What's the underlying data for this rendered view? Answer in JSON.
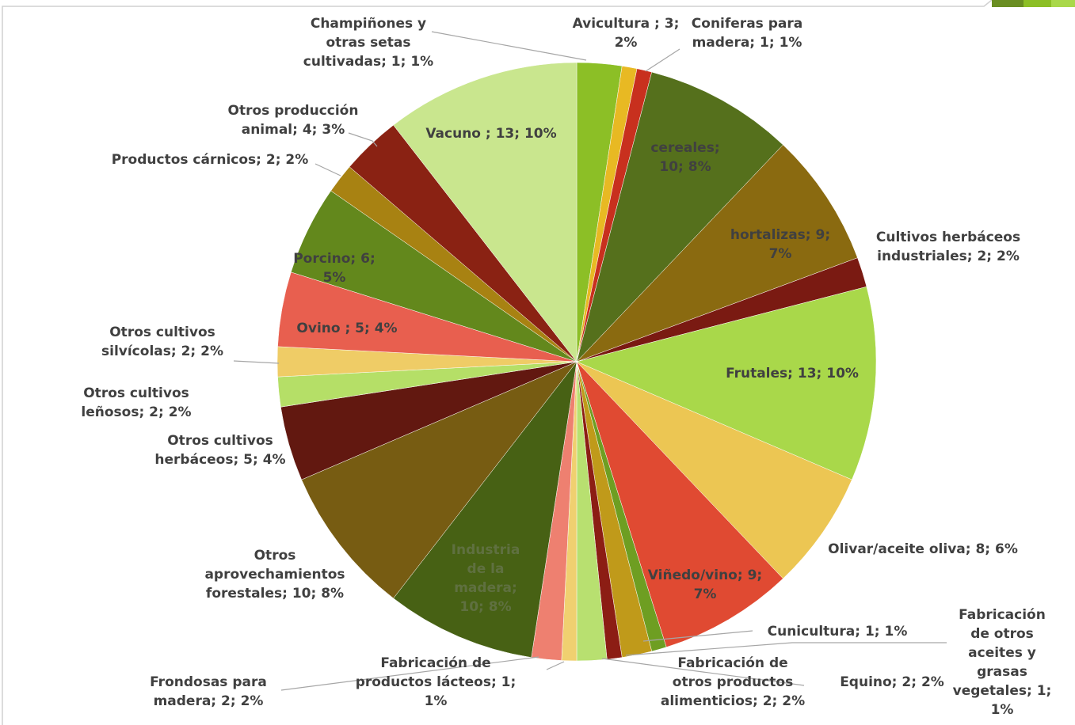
{
  "chart_data": {
    "type": "pie",
    "values": [
      3,
      1,
      1,
      10,
      9,
      2,
      13,
      8,
      9,
      1,
      2,
      1,
      2,
      1,
      2,
      10,
      10,
      5,
      2,
      2,
      5,
      6,
      2,
      4,
      13
    ],
    "value_labels": [
      "Avicultura ; 3; 2%",
      "Champiñones y otras setas cultivadas; 1; 1%",
      "Coniferas para madera; 1; 1%",
      "cereales; 10; 8%",
      "hortalizas; 9; 7%",
      "Cultivos herbáceos industriales; 2; 2%",
      "Frutales; 13; 10%",
      "Olivar/aceite oliva; 8; 6%",
      "Viñedo/vino; 9; 7%",
      "Cunicultura; 1; 1%",
      "Equino; 2; 2%",
      "Fabricación de otros aceites y grasas vegetales; 1; 1%",
      "Fabricación de otros productos alimenticios; 2; 2%",
      "Fabricación de productos lácteos; 1; 1%",
      "Frondosas para madera; 2; 2%",
      "Industria de la madera; 10; 8%",
      "Otros aprovechamientos forestales; 10; 8%",
      "Otros cultivos herbáceos; 5; 4%",
      "Otros cultivos leñosos; 2; 2%",
      "Otros cultivos silvícolas; 2; 2%",
      "Ovino ; 5; 4%",
      "Porcino; 6; 5%",
      "Productos cárnicos; 2; 2%",
      "Otros producción animal; 4; 3%",
      "Vacuno ; 13; 10%"
    ],
    "colors": [
      "#8cbf26",
      "#e8b923",
      "#c8301e",
      "#55701c",
      "#8a6a10",
      "#7a1a12",
      "#a9d84a",
      "#ecc653",
      "#e04a32",
      "#6e9e22",
      "#c09a1a",
      "#8c1d14",
      "#b8e070",
      "#f0d070",
      "#ee8070",
      "#476114",
      "#775c12",
      "#621810",
      "#b5df67",
      "#efcc66",
      "#e85f4f",
      "#63881c",
      "#a88212",
      "#8a2213",
      "#c9e68e"
    ]
  }
}
